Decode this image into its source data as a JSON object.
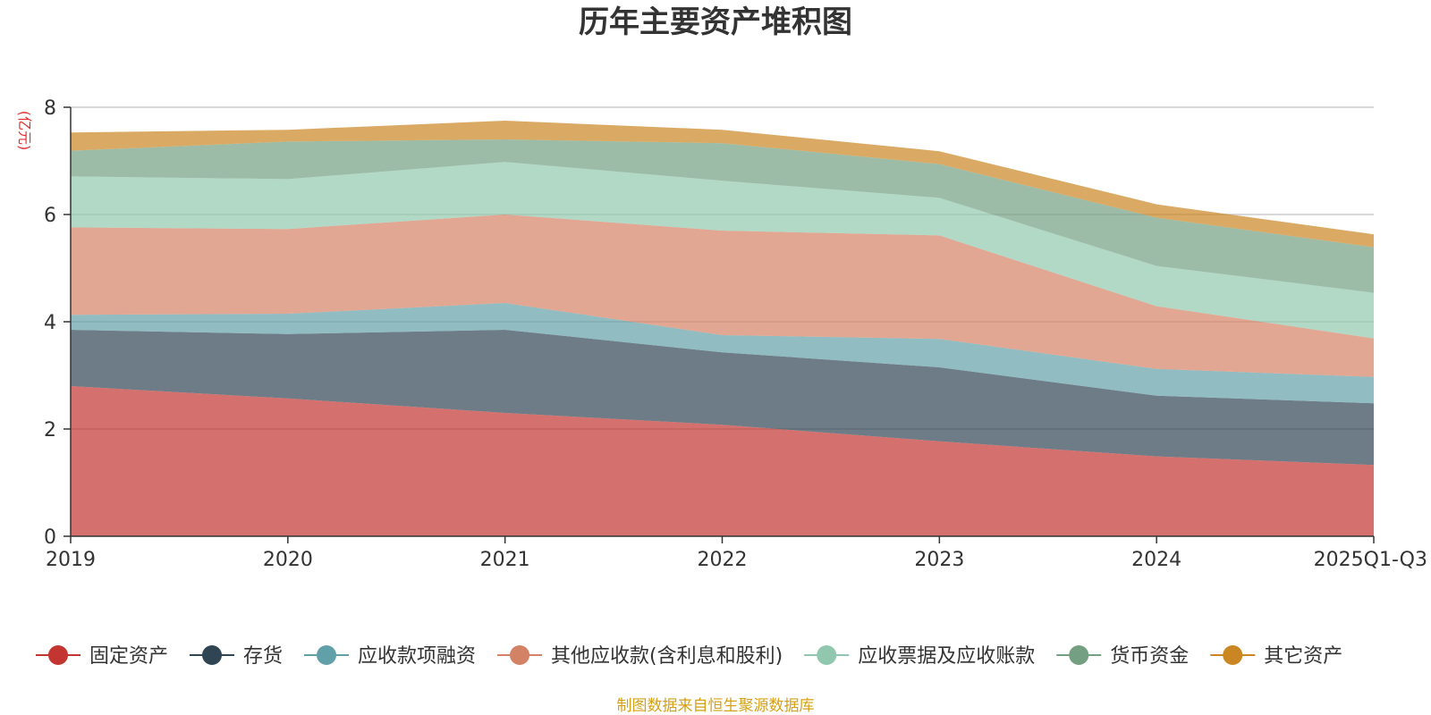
{
  "chart_data": {
    "type": "area",
    "stacked": true,
    "title": "历年主要资产堆积图",
    "ylabel": "(亿元)",
    "ylim": [
      0,
      8
    ],
    "yticks": [
      "0",
      "2",
      "4",
      "6",
      "8"
    ],
    "categories": [
      "2019",
      "2020",
      "2021",
      "2022",
      "2023",
      "2024",
      "2025Q1-Q3"
    ],
    "legend_position": "bottom",
    "series": [
      {
        "name": "固定资产",
        "color": "#c23531",
        "values": [
          2.8,
          2.57,
          2.3,
          2.08,
          1.77,
          1.49,
          1.33
        ]
      },
      {
        "name": "存货",
        "color": "#2f4554",
        "values": [
          1.05,
          1.2,
          1.55,
          1.35,
          1.38,
          1.13,
          1.15
        ]
      },
      {
        "name": "应收款项融资",
        "color": "#61a0a8",
        "values": [
          0.28,
          0.38,
          0.5,
          0.32,
          0.53,
          0.5,
          0.49
        ]
      },
      {
        "name": "其他应收款(含利息和股利)",
        "color": "#d48265",
        "values": [
          1.63,
          1.58,
          1.65,
          1.95,
          1.93,
          1.17,
          0.72
        ]
      },
      {
        "name": "应收票据及应收账款",
        "color": "#91c7ae",
        "values": [
          0.95,
          0.93,
          0.98,
          0.93,
          0.7,
          0.75,
          0.85
        ]
      },
      {
        "name": "货币资金",
        "color": "#749f83",
        "values": [
          0.48,
          0.7,
          0.42,
          0.7,
          0.63,
          0.9,
          0.85
        ]
      },
      {
        "name": "其它资产",
        "color": "#ca8622",
        "values": [
          0.34,
          0.22,
          0.35,
          0.25,
          0.24,
          0.25,
          0.24
        ]
      }
    ]
  },
  "footer": {
    "source": "制图数据来自恒生聚源数据库"
  }
}
